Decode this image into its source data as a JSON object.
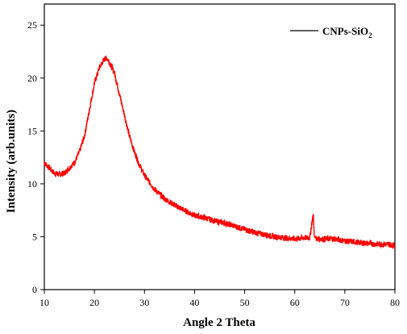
{
  "chart_data": {
    "type": "line",
    "xlabel": "Angle 2 Theta",
    "ylabel": "Intensity (arb.units)",
    "xlim": [
      10,
      80
    ],
    "ylim": [
      0,
      27
    ],
    "x_ticks": [
      10,
      20,
      30,
      40,
      50,
      60,
      70,
      80
    ],
    "y_ticks": [
      0,
      5,
      10,
      15,
      20,
      25
    ],
    "grid": false,
    "legend_position": "top-right",
    "series": [
      {
        "name": "CNPs-SiO2",
        "legend_text": "CNPs-SiO",
        "legend_subscript": "2",
        "color": "#ff0000",
        "x": [
          10,
          11,
          12,
          13,
          14,
          15,
          16,
          17,
          18,
          19,
          20,
          21,
          22,
          22.5,
          23,
          24,
          25,
          26,
          27,
          28,
          29,
          30,
          32,
          34,
          36,
          38,
          40,
          42,
          44,
          46,
          48,
          50,
          52,
          54,
          56,
          58,
          60,
          62,
          63,
          63.7,
          63.9,
          64.1,
          64.5,
          66,
          68,
          70,
          72,
          74,
          76,
          78,
          80
        ],
        "y": [
          12.0,
          11.5,
          11.0,
          10.9,
          11.0,
          11.5,
          12.0,
          13.0,
          14.5,
          17.0,
          19.5,
          21.0,
          21.8,
          21.9,
          21.5,
          20.5,
          18.5,
          16.5,
          14.5,
          13.0,
          11.8,
          10.8,
          9.5,
          8.6,
          8.0,
          7.5,
          7.0,
          6.8,
          6.5,
          6.3,
          6.0,
          5.7,
          5.4,
          5.2,
          5.0,
          4.9,
          4.8,
          4.9,
          4.9,
          7.2,
          5.0,
          4.9,
          4.8,
          4.8,
          4.8,
          4.6,
          4.5,
          4.4,
          4.3,
          4.3,
          4.2
        ]
      }
    ]
  }
}
